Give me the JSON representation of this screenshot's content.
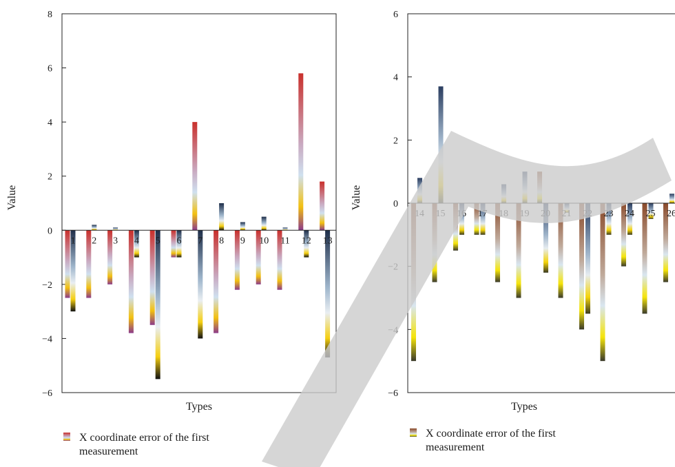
{
  "chart_data": [
    {
      "type": "bar",
      "xlabel": "Types",
      "ylabel": "Value",
      "ylim": [
        -6,
        8
      ],
      "yticks": [
        -6,
        -4,
        -2,
        0,
        2,
        4,
        6,
        8
      ],
      "grid": false,
      "legend_position": "bottom-left",
      "categories": [
        "1",
        "2",
        "3",
        "4",
        "5",
        "6",
        "7",
        "8",
        "9",
        "10",
        "11",
        "12",
        "13"
      ],
      "series": [
        {
          "name": "X coordinate error of the first measurement",
          "gradient": [
            "#c9302c",
            "#c9a9c0",
            "#cfe0ef",
            "#f2c010",
            "#8b3a8a"
          ],
          "values": [
            -2.5,
            -2.5,
            -2.0,
            -3.8,
            -3.5,
            -1.0,
            4.0,
            -3.8,
            -2.2,
            -2.0,
            -2.2,
            5.8,
            1.8
          ]
        },
        {
          "gradient": [
            "#1f2f4a",
            "#9fb6cc",
            "#e9eef2",
            "#f5cf10",
            "#111111"
          ],
          "values": [
            -3.0,
            0.2,
            0.1,
            -1.0,
            -5.5,
            -1.0,
            -4.0,
            1.0,
            0.3,
            0.5,
            0.1,
            -1.0,
            -4.7
          ]
        }
      ]
    },
    {
      "type": "bar",
      "xlabel": "Types",
      "ylabel": "Value",
      "ylim": [
        -6,
        6
      ],
      "yticks": [
        -6,
        -4,
        -2,
        0,
        2,
        4,
        6
      ],
      "grid": false,
      "legend_position": "bottom-left",
      "categories": [
        "14",
        "15",
        "16",
        "17",
        "18",
        "19",
        "20",
        "21",
        "22",
        "23",
        "24",
        "25",
        "26"
      ],
      "series": [
        {
          "name": "X coordinate error of the first measurement",
          "gradient": [
            "#8a4a2a",
            "#bfa99a",
            "#d9e6f0",
            "#f5e40a",
            "#3a3a2a"
          ],
          "values": [
            -5.0,
            -2.5,
            -1.5,
            -1.0,
            -2.5,
            -3.0,
            1.0,
            -3.0,
            -4.0,
            -5.0,
            -2.0,
            -3.5,
            -2.5
          ]
        },
        {
          "gradient": [
            "#2b3e60",
            "#9eb3c9",
            "#e6ecf0",
            "#f5d40a",
            "#3a3a20"
          ],
          "values": [
            0.8,
            3.7,
            -1.0,
            -1.0,
            0.6,
            1.0,
            -2.2,
            -0.3,
            -3.5,
            -1.0,
            -1.0,
            -0.5,
            0.3
          ]
        }
      ]
    }
  ]
}
